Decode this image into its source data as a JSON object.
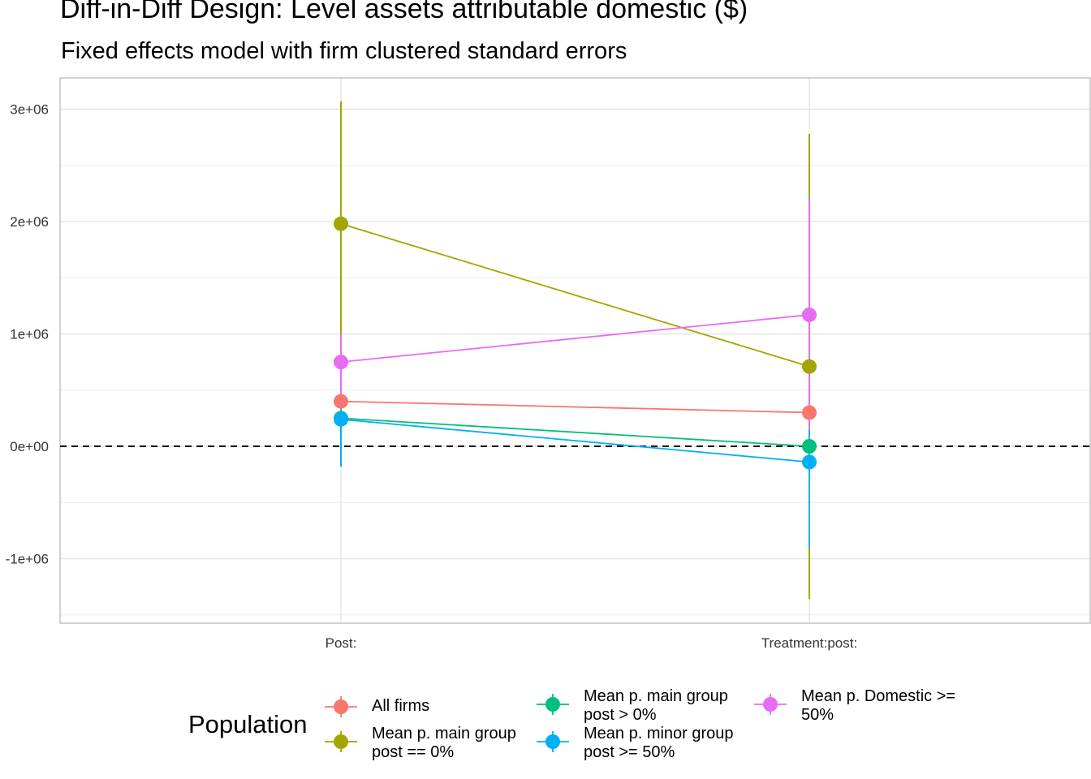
{
  "chart_data": {
    "type": "line",
    "title": "Diff-in-Diff Design: Level assets attributable domestic  ($)",
    "subtitle": "Fixed effects model with firm clustered standard errors",
    "xlabel": "",
    "ylabel": "",
    "categories": [
      "Post:",
      "Treatment:post:"
    ],
    "ylim": [
      -1500000,
      3300000
    ],
    "yticks": [
      -1000000,
      0,
      1000000,
      2000000,
      3000000
    ],
    "ytick_labels": [
      "-1e+06",
      "0e+00",
      "1e+06",
      "2e+06",
      "3e+06"
    ],
    "reference_line": {
      "y": 0,
      "style": "dashed"
    },
    "grid": true,
    "legend": {
      "title": "Population",
      "position": "bottom"
    },
    "series": [
      {
        "name": "All firms",
        "color": "#F8766D",
        "values": [
          400000,
          300000
        ],
        "lower": [
          250000,
          150000
        ],
        "upper": [
          560000,
          460000
        ]
      },
      {
        "name": "Mean p. main group post == 0%",
        "color": "#A3A500",
        "values": [
          1980000,
          710000
        ],
        "lower": [
          900000,
          -1360000
        ],
        "upper": [
          3070000,
          2780000
        ]
      },
      {
        "name": "Mean p. main group post > 0%",
        "color": "#00BF7D",
        "values": [
          250000,
          0
        ],
        "lower": [
          100000,
          -150000
        ],
        "upper": [
          400000,
          150000
        ]
      },
      {
        "name": "Mean p. minor group post >= 50%",
        "color": "#00B0F6",
        "values": [
          240000,
          -140000
        ],
        "lower": [
          -180000,
          -900000
        ],
        "upper": [
          650000,
          620000
        ]
      },
      {
        "name": "Mean p. Domestic >= 50%",
        "color": "#E76BF3",
        "values": [
          750000,
          1170000
        ],
        "lower": [
          450000,
          150000
        ],
        "upper": [
          1000000,
          2200000
        ]
      }
    ]
  },
  "legend_labels": [
    {
      "line1": "All firms",
      "line2": ""
    },
    {
      "line1": "Mean p. main group",
      "line2": "post == 0%"
    },
    {
      "line1": "Mean p. main group",
      "line2": "post > 0%"
    },
    {
      "line1": "Mean p. minor group",
      "line2": "post >= 50%"
    },
    {
      "line1": "Mean p. Domestic >=",
      "line2": "50%"
    }
  ]
}
